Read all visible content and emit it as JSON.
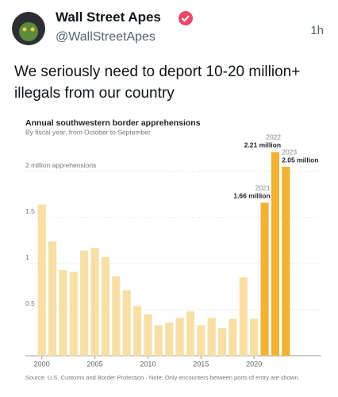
{
  "tweet": {
    "name": "Wall Street Apes",
    "handle": "@WallStreetApes",
    "time": "1h",
    "text": "We seriously need to deport 10-20 million+ illegals from our country"
  },
  "chart_data": {
    "type": "bar",
    "title": "Annual southwestern border apprehensions",
    "subtitle": "By fiscal year, from October to September",
    "source": "Source: U.S. Customs and Border Protection  ·  Note: Only encounters between ports of entry are shown.",
    "x": [
      2000,
      2001,
      2002,
      2003,
      2004,
      2005,
      2006,
      2007,
      2008,
      2009,
      2010,
      2011,
      2012,
      2013,
      2014,
      2015,
      2016,
      2017,
      2018,
      2019,
      2020,
      2021,
      2022,
      2023
    ],
    "values": [
      1.64,
      1.24,
      0.93,
      0.91,
      1.14,
      1.17,
      1.07,
      0.86,
      0.71,
      0.54,
      0.45,
      0.33,
      0.36,
      0.41,
      0.48,
      0.33,
      0.41,
      0.3,
      0.4,
      0.85,
      0.4,
      1.66,
      2.21,
      2.05
    ],
    "value_labels": [
      null,
      null,
      null,
      null,
      null,
      null,
      null,
      null,
      null,
      null,
      null,
      null,
      null,
      null,
      null,
      null,
      null,
      null,
      null,
      null,
      null,
      "1.66 million",
      "2.21 million",
      "2.05 million"
    ],
    "colors": [
      "#f7dfa5",
      "#f7dfa5",
      "#f7dfa5",
      "#f7dfa5",
      "#f7dfa5",
      "#f7dfa5",
      "#f7dfa5",
      "#f7dfa5",
      "#f7dfa5",
      "#f7dfa5",
      "#f7dfa5",
      "#f7dfa5",
      "#f7dfa5",
      "#f7dfa5",
      "#f7dfa5",
      "#f7dfa5",
      "#f7dfa5",
      "#f7dfa5",
      "#f7dfa5",
      "#f7dfa5",
      "#f7dfa5",
      "#f2b233",
      "#f2b233",
      "#f2b233"
    ],
    "xlim": [
      1999.5,
      2023.5
    ],
    "xticks": [
      2000,
      2005,
      2010,
      2015,
      2020
    ],
    "ylim": [
      0,
      2.3
    ],
    "yticks": [
      0.5,
      1,
      1.5,
      {
        "value": 2,
        "label": "2 million apprehensions"
      }
    ],
    "grid": true
  }
}
